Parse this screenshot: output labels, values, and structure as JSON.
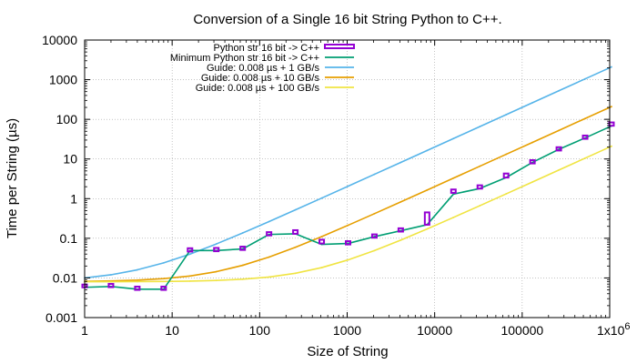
{
  "chart_data": {
    "type": "line",
    "title": "Conversion of a Single 16 bit String Python to C++.",
    "xlabel": "Size of String",
    "ylabel": "Time per String (µs)",
    "xscale": "log",
    "yscale": "log",
    "xlim": [
      1,
      1000000
    ],
    "ylim": [
      0.001,
      10000
    ],
    "grid": true,
    "legend_position": "top-left",
    "xticks": [
      {
        "value": 1,
        "label": "1"
      },
      {
        "value": 10,
        "label": "10"
      },
      {
        "value": 100,
        "label": "100"
      },
      {
        "value": 1000,
        "label": "1000"
      },
      {
        "value": 10000,
        "label": "10000"
      },
      {
        "value": 100000,
        "label": "100000"
      },
      {
        "value": 1000000,
        "label": "1x10^6"
      }
    ],
    "yticks": [
      {
        "value": 0.001,
        "label": "0.001"
      },
      {
        "value": 0.01,
        "label": "0.01"
      },
      {
        "value": 0.1,
        "label": "0.1"
      },
      {
        "value": 1,
        "label": "1"
      },
      {
        "value": 10,
        "label": "10"
      },
      {
        "value": 100,
        "label": "100"
      },
      {
        "value": 1000,
        "label": "1000"
      },
      {
        "value": 10000,
        "label": "10000"
      }
    ],
    "series": [
      {
        "name": "Python str 16 bit -> C++",
        "style": "boxes",
        "color": "#9400d3",
        "x": [
          1,
          2,
          4,
          8,
          16,
          32,
          64,
          128,
          256,
          512,
          1024,
          2048,
          4096,
          8192,
          16384,
          32768,
          65536,
          131072,
          262144,
          524288,
          1048576
        ],
        "low": [
          0.0058,
          0.0061,
          0.0052,
          0.0052,
          0.049,
          0.049,
          0.054,
          0.125,
          0.13,
          0.074,
          0.074,
          0.11,
          0.155,
          0.22,
          1.4,
          1.85,
          3.4,
          8.2,
          17.5,
          34,
          72
        ],
        "high": [
          0.0068,
          0.0068,
          0.0058,
          0.0058,
          0.053,
          0.055,
          0.058,
          0.135,
          0.16,
          0.092,
          0.08,
          0.118,
          0.17,
          0.45,
          1.7,
          2.1,
          4.3,
          8.8,
          18.5,
          37,
          80
        ],
        "values": [
          0.0063,
          0.0064,
          0.0055,
          0.0055,
          0.051,
          0.052,
          0.056,
          0.13,
          0.145,
          0.083,
          0.077,
          0.114,
          0.162,
          0.33,
          1.55,
          1.95,
          3.8,
          8.5,
          18,
          35.5,
          76
        ]
      },
      {
        "name": "Minimum Python str 16 bit -> C++",
        "style": "line",
        "color": "#009e73",
        "x": [
          1,
          2,
          4,
          8,
          16,
          32,
          64,
          128,
          256,
          512,
          1024,
          2048,
          4096,
          8192,
          16384,
          32768,
          65536,
          131072,
          262144,
          524288,
          1048576
        ],
        "values": [
          0.0058,
          0.0061,
          0.0052,
          0.0052,
          0.049,
          0.049,
          0.054,
          0.125,
          0.13,
          0.07,
          0.074,
          0.11,
          0.155,
          0.22,
          1.3,
          1.8,
          3.4,
          8.2,
          17.5,
          34,
          68
        ]
      },
      {
        "name": "Guide: 0.008 µs + 1 GB/s",
        "style": "line",
        "color": "#56b4e9",
        "x": [
          1,
          2,
          4,
          8,
          16,
          32,
          64,
          128,
          256,
          512,
          1024,
          2048,
          4096,
          8192,
          16384,
          32768,
          65536,
          131072,
          262144,
          524288,
          1048576
        ],
        "values": [
          0.01,
          0.012,
          0.016,
          0.024,
          0.04,
          0.072,
          0.136,
          0.264,
          0.52,
          1.032,
          2.056,
          4.104,
          8.2,
          16.392,
          32.776,
          65.544,
          131.08,
          262.152,
          524.296,
          1048.584,
          2097.16
        ]
      },
      {
        "name": "Guide: 0.008 µs + 10 GB/s",
        "style": "line",
        "color": "#e69f00",
        "x": [
          1,
          2,
          4,
          8,
          16,
          32,
          64,
          128,
          256,
          512,
          1024,
          2048,
          4096,
          8192,
          16384,
          32768,
          65536,
          131072,
          262144,
          524288,
          1048576
        ],
        "values": [
          0.0082,
          0.0084,
          0.0088,
          0.0096,
          0.0112,
          0.0144,
          0.0208,
          0.0336,
          0.0592,
          0.1104,
          0.2128,
          0.4176,
          0.8272,
          1.6464,
          3.2848,
          6.5616,
          13.1152,
          26.2224,
          52.4368,
          104.8656,
          209.7232
        ]
      },
      {
        "name": "Guide: 0.008 µs + 100 GB/s",
        "style": "line",
        "color": "#f0e442",
        "x": [
          1,
          2,
          4,
          8,
          16,
          32,
          64,
          128,
          256,
          512,
          1024,
          2048,
          4096,
          8192,
          16384,
          32768,
          65536,
          131072,
          262144,
          524288,
          1048576
        ],
        "values": [
          0.00802,
          0.00804,
          0.00808,
          0.00816,
          0.00832,
          0.00864,
          0.00928,
          0.01056,
          0.01312,
          0.01824,
          0.02848,
          0.04896,
          0.08992,
          0.17184,
          0.33568,
          0.66336,
          1.31872,
          2.62944,
          5.25088,
          10.49376,
          20.97952
        ]
      }
    ]
  }
}
